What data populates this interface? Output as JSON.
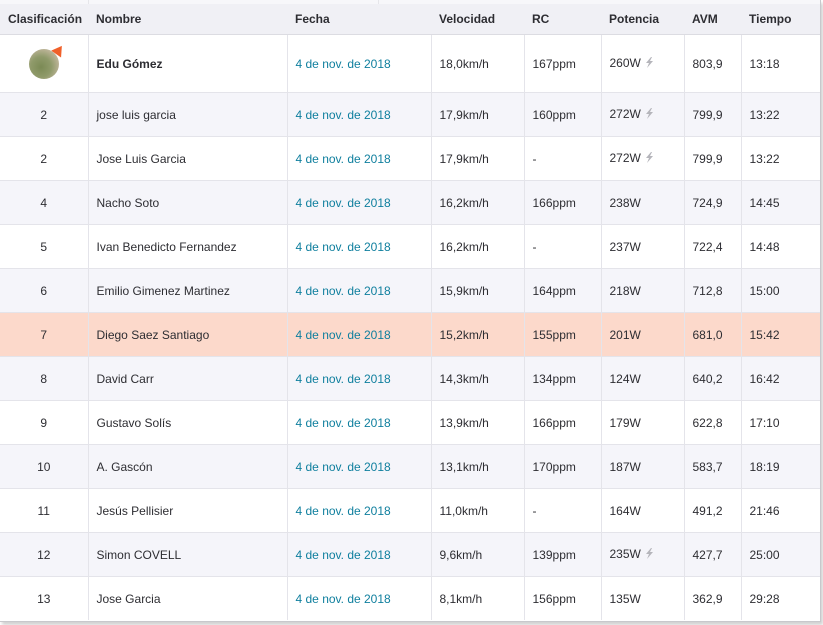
{
  "columns": [
    "Clasificación",
    "Nombre",
    "Fecha",
    "Velocidad",
    "RC",
    "Potencia",
    "AVM",
    "Tiempo"
  ],
  "rows": [
    {
      "rank": "",
      "name": "Edu Gómez",
      "date": "4 de nov. de 2018",
      "speed": "18,0km/h",
      "rc": "167ppm",
      "power": "260W",
      "power_icon": "lightning-icon",
      "avm": "803,9",
      "time": "13:18",
      "avatar": "user-avatar"
    },
    {
      "rank": "2",
      "name": "jose luis garcia",
      "date": "4 de nov. de 2018",
      "speed": "17,9km/h",
      "rc": "160ppm",
      "power": "272W",
      "power_icon": "lightning-icon",
      "avm": "799,9",
      "time": "13:22"
    },
    {
      "rank": "2",
      "name": "Jose Luis Garcia",
      "date": "4 de nov. de 2018",
      "speed": "17,9km/h",
      "rc": "-",
      "power": "272W",
      "power_icon": "lightning-icon",
      "avm": "799,9",
      "time": "13:22"
    },
    {
      "rank": "4",
      "name": "Nacho Soto",
      "date": "4 de nov. de 2018",
      "speed": "16,2km/h",
      "rc": "166ppm",
      "power": "238W",
      "avm": "724,9",
      "time": "14:45"
    },
    {
      "rank": "5",
      "name": "Ivan Benedicto Fernandez",
      "date": "4 de nov. de 2018",
      "speed": "16,2km/h",
      "rc": "-",
      "power": "237W",
      "avm": "722,4",
      "time": "14:48"
    },
    {
      "rank": "6",
      "name": "Emilio Gimenez Martinez",
      "date": "4 de nov. de 2018",
      "speed": "15,9km/h",
      "rc": "164ppm",
      "power": "218W",
      "avm": "712,8",
      "time": "15:00"
    },
    {
      "rank": "7",
      "name": "Diego Saez Santiago",
      "date": "4 de nov. de 2018",
      "speed": "15,2km/h",
      "rc": "155ppm",
      "power": "201W",
      "avm": "681,0",
      "time": "15:42",
      "highlight": true
    },
    {
      "rank": "8",
      "name": "David Carr",
      "date": "4 de nov. de 2018",
      "speed": "14,3km/h",
      "rc": "134ppm",
      "power": "124W",
      "avm": "640,2",
      "time": "16:42"
    },
    {
      "rank": "9",
      "name": "Gustavo Solís",
      "date": "4 de nov. de 2018",
      "speed": "13,9km/h",
      "rc": "166ppm",
      "power": "179W",
      "avm": "622,8",
      "time": "17:10"
    },
    {
      "rank": "10",
      "name": "A. Gascón",
      "date": "4 de nov. de 2018",
      "speed": "13,1km/h",
      "rc": "170ppm",
      "power": "187W",
      "avm": "583,7",
      "time": "18:19"
    },
    {
      "rank": "11",
      "name": "Jesús Pellisier",
      "date": "4 de nov. de 2018",
      "speed": "11,0km/h",
      "rc": "-",
      "power": "164W",
      "avm": "491,2",
      "time": "21:46"
    },
    {
      "rank": "12",
      "name": "Simon COVELL",
      "date": "4 de nov. de 2018",
      "speed": "9,6km/h",
      "rc": "139ppm",
      "power": "235W",
      "power_icon": "lightning-icon",
      "avm": "427,7",
      "time": "25:00"
    },
    {
      "rank": "13",
      "name": "Jose Garcia",
      "date": "4 de nov. de 2018",
      "speed": "8,1km/h",
      "rc": "156ppm",
      "power": "135W",
      "avm": "362,9",
      "time": "29:28"
    }
  ],
  "colors": {
    "date_link": "#0f7f9e",
    "highlight_row": "#fcd9cb",
    "header_bg": "#f0f0f5",
    "alt_row": "#f5f5fa"
  }
}
